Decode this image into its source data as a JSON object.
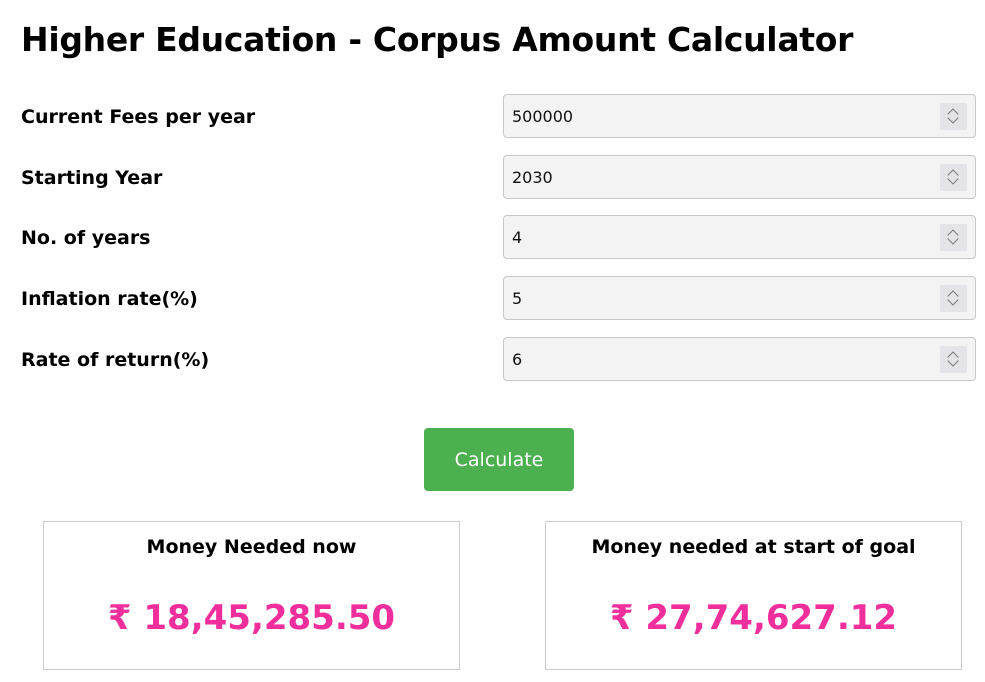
{
  "title": "Higher Education - Corpus Amount Calculator",
  "fields": [
    {
      "label": "Current Fees per year",
      "value": "500000"
    },
    {
      "label": "Starting Year",
      "value": "2030"
    },
    {
      "label": "No. of years",
      "value": "4"
    },
    {
      "label": "Inflation rate(%)",
      "value": "5"
    },
    {
      "label": "Rate of return(%)",
      "value": "6"
    }
  ],
  "calculate_label": "Calculate",
  "results": [
    {
      "label": "Money Needed now",
      "amount": "₹ 18,45,285.50"
    },
    {
      "label": "Money needed at start of goal",
      "amount": "₹ 27,74,627.12"
    }
  ],
  "colors": {
    "button": "#4caf50",
    "amount": "#f02e9c"
  }
}
